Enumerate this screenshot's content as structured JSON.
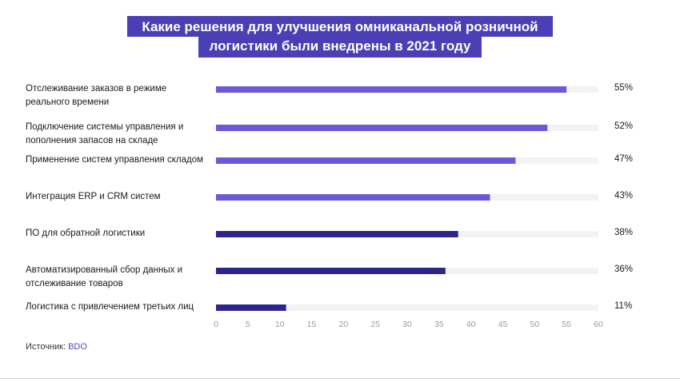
{
  "title": {
    "line1": "Какие решения для улучшения омниканальной розничной",
    "line2": "логистики были внедрены в 2021 году"
  },
  "source": {
    "label": "Источник: ",
    "name": "BDO"
  },
  "colors": {
    "title_bg": "#4b3fb5",
    "bar_light": "#6a5ad8",
    "bar_dark": "#2e248e",
    "track": "#f3f3f5",
    "source_link": "#5546c8"
  },
  "chart_data": {
    "type": "bar",
    "orientation": "horizontal",
    "categories": [
      "Отслеживание заказов в режиме реального времени",
      "Подключение системы управления и пополнения запасов на складе",
      "Применение систем управления складом",
      "Интеграция ERP и CRM систем",
      "ПО для обратной логистики",
      "Автоматизированный сбор данных и отслеживание товаров",
      "Логистика с привлечением третьих лиц"
    ],
    "category_lines": [
      [
        "Отслеживание заказов в режиме",
        "реального времени"
      ],
      [
        "Подключение системы управления и",
        "пополнения запасов на складе"
      ],
      [
        "Применение систем управления складом"
      ],
      [
        "Интеграция ERP и CRM систем"
      ],
      [
        "ПО для обратной логистики"
      ],
      [
        "Автоматизированный сбор данных и",
        "отслеживание товаров"
      ],
      [
        "Логистика с привлечением третьих лиц"
      ]
    ],
    "values": [
      55,
      52,
      47,
      43,
      38,
      36,
      11
    ],
    "value_labels": [
      "55%",
      "52%",
      "47%",
      "43%",
      "38%",
      "36%",
      "11%"
    ],
    "bar_tone": [
      "light",
      "light",
      "light",
      "light",
      "dark",
      "dark",
      "dark"
    ],
    "xlim": [
      0,
      60
    ],
    "xticks": [
      0,
      5,
      10,
      15,
      20,
      25,
      30,
      35,
      40,
      45,
      50,
      55,
      60
    ],
    "grid": false,
    "legend": "none"
  }
}
